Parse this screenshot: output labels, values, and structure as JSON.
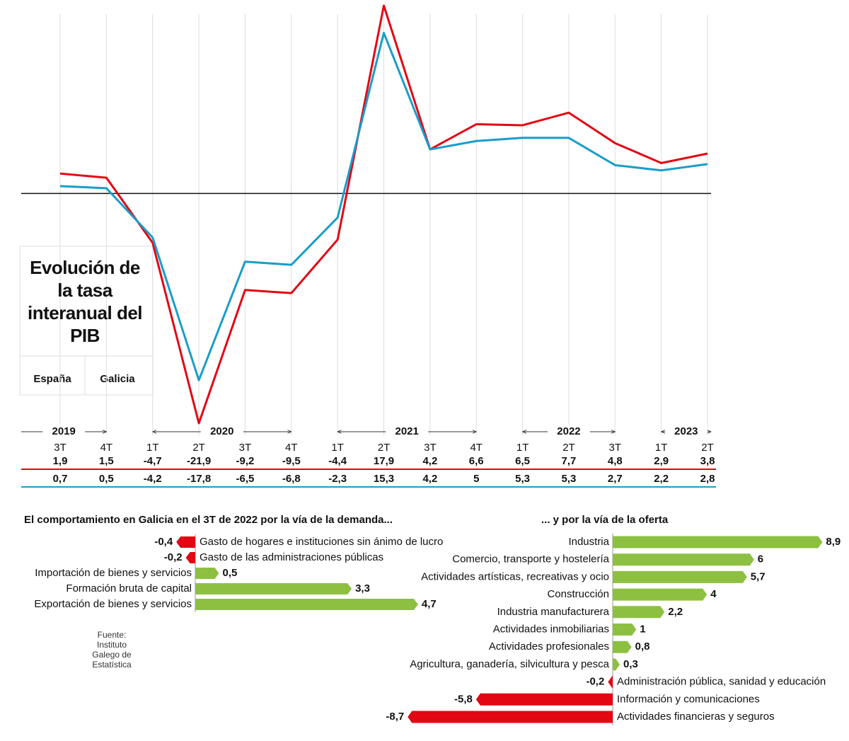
{
  "chart_data": [
    {
      "type": "line",
      "title": "Evolución de la tasa interanual del PIB",
      "categories": [
        "3T",
        "4T",
        "1T",
        "2T",
        "3T",
        "4T",
        "1T",
        "2T",
        "3T",
        "4T",
        "1T",
        "2T",
        "3T",
        "1T",
        "2T"
      ],
      "year_labels": [
        "2019",
        "2020",
        "2021",
        "2022",
        "2023"
      ],
      "series": [
        {
          "name": "España",
          "color": "#e30613",
          "values": [
            1.9,
            1.5,
            -4.7,
            -21.9,
            -9.2,
            -9.5,
            -4.4,
            17.9,
            4.2,
            6.6,
            6.5,
            7.7,
            4.8,
            2.9,
            3.8
          ],
          "value_labels": [
            "1,9",
            "1,5",
            "-4,7",
            "-21,9",
            "-9,2",
            "-9,5",
            "-4,4",
            "17,9",
            "4,2",
            "6,6",
            "6,5",
            "7,7",
            "4,8",
            "2,9",
            "3,8"
          ]
        },
        {
          "name": "Galicia",
          "color": "#1a9dc9",
          "values": [
            0.7,
            0.5,
            -4.2,
            -17.8,
            -6.5,
            -6.8,
            -2.3,
            15.3,
            4.2,
            5,
            5.3,
            5.3,
            2.7,
            2.2,
            2.8
          ],
          "value_labels": [
            "0,7",
            "0,5",
            "-4,2",
            "-17,8",
            "-6,5",
            "-6,8",
            "-2,3",
            "15,3",
            "4,2",
            "5",
            "5,3",
            "5,3",
            "2,7",
            "2,2",
            "2,8"
          ]
        }
      ]
    },
    {
      "type": "bar",
      "title": "El comportamiento en Galicia en el 3T de 2022 por la vía de la demanda...",
      "categories": [
        "Gasto de hogares e instituciones sin ánimo de lucro",
        "Gasto de las administraciones públicas",
        "Importación de bienes y servicios",
        "Formación bruta de capital",
        "Exportación de bienes y servicios"
      ],
      "values": [
        -0.4,
        -0.2,
        0.5,
        3.3,
        4.7
      ],
      "value_labels": [
        "-0,4",
        "-0,2",
        "0,5",
        "3,3",
        "4,7"
      ],
      "color": "#8dc041",
      "negative_color": "#e30613"
    },
    {
      "type": "bar",
      "title": "... y por la vía de la oferta",
      "categories": [
        "Industria",
        "Comercio, transporte y hostelería",
        "Actividades artísticas, recreativas y ocio",
        "Construcción",
        "Industria manufacturera",
        "Actividades inmobiliarias",
        "Actividades profesionales",
        "Agricultura, ganadería, silvicultura y pesca",
        "Administración pública, sanidad y educación",
        "Información y comunicaciones",
        "Actividades financieras y seguros"
      ],
      "values": [
        8.9,
        6,
        5.7,
        4,
        2.2,
        1,
        0.8,
        0.3,
        -0.2,
        -5.8,
        -8.7
      ],
      "value_labels": [
        "8,9",
        "6",
        "5,7",
        "4",
        "2,2",
        "1",
        "0,8",
        "0,3",
        "-0,2",
        "-5,8",
        "-8,7"
      ],
      "color": "#8dc041",
      "negative_color": "#e30613"
    }
  ],
  "source": "Fuente: Instituto Galego de Estatística"
}
